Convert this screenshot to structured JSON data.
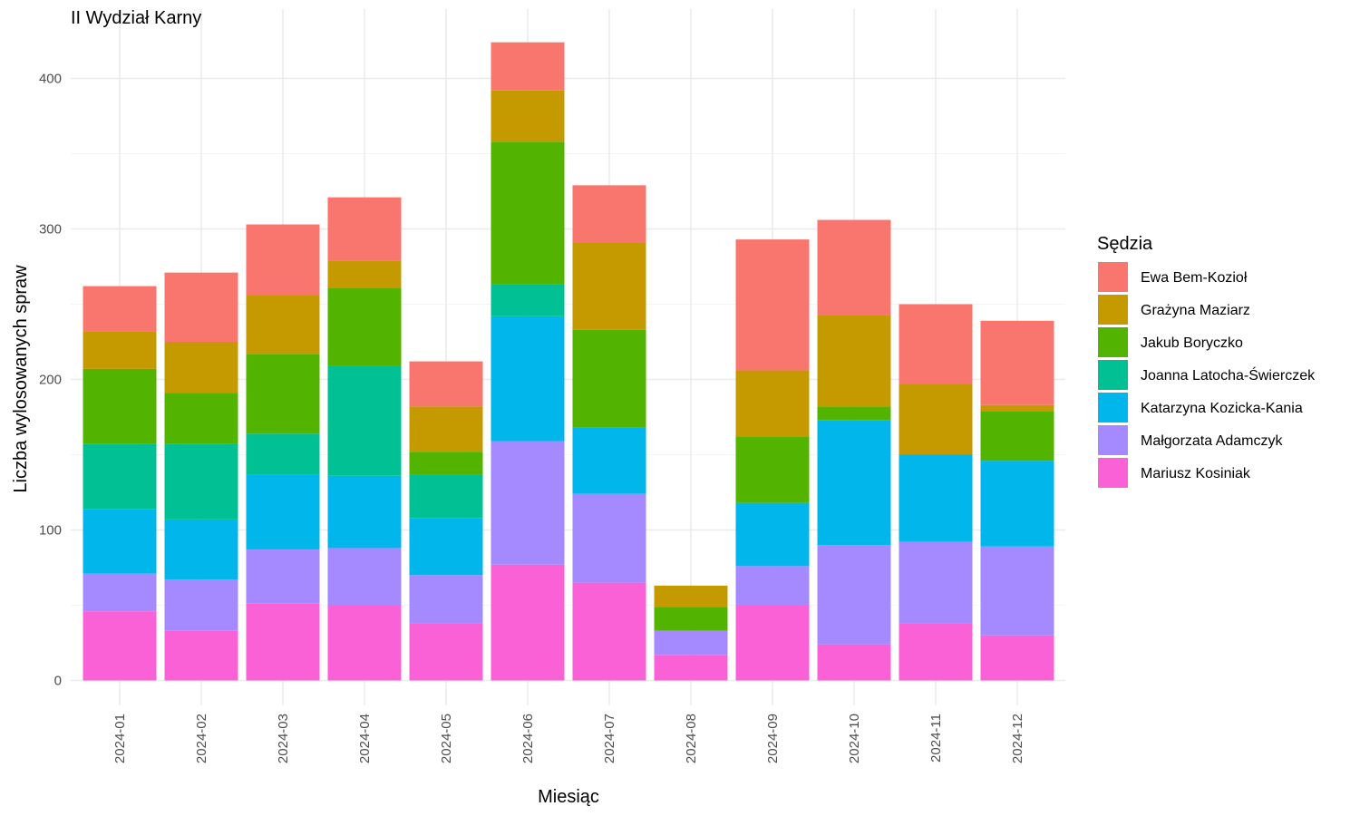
{
  "chart_data": {
    "type": "bar",
    "stacked": true,
    "title": "II Wydział Karny",
    "xlabel": "Miesiąc",
    "ylabel": "Liczba wylosowanych spraw",
    "ylim": [
      0,
      435
    ],
    "y_ticks": [
      0,
      100,
      200,
      300,
      400
    ],
    "grid": true,
    "legend": {
      "title": "Sędzia",
      "position": "right"
    },
    "categories": [
      "2024-01",
      "2024-02",
      "2024-03",
      "2024-04",
      "2024-05",
      "2024-06",
      "2024-07",
      "2024-08",
      "2024-09",
      "2024-10",
      "2024-11",
      "2024-12"
    ],
    "series": [
      {
        "name": "Ewa Bem-Kozioł",
        "color": "#F8766D",
        "values": [
          30,
          46,
          47,
          42,
          30,
          32,
          38,
          0,
          87,
          63,
          53,
          56
        ]
      },
      {
        "name": "Grażyna Maziarz",
        "color": "#C49A00",
        "values": [
          25,
          34,
          39,
          18,
          30,
          34,
          58,
          14,
          44,
          61,
          47,
          4
        ]
      },
      {
        "name": "Jakub Boryczko",
        "color": "#53B400",
        "values": [
          50,
          34,
          53,
          52,
          15,
          95,
          65,
          16,
          44,
          9,
          0,
          33
        ]
      },
      {
        "name": "Joanna Latocha-Świerczek",
        "color": "#00C094",
        "values": [
          43,
          50,
          27,
          73,
          29,
          21,
          0,
          0,
          0,
          0,
          0,
          0
        ]
      },
      {
        "name": "Katarzyna Kozicka-Kania",
        "color": "#00B6EB",
        "values": [
          43,
          40,
          50,
          48,
          38,
          83,
          44,
          0,
          42,
          83,
          58,
          57
        ]
      },
      {
        "name": "Małgorzata Adamczyk",
        "color": "#A58AFF",
        "values": [
          25,
          34,
          36,
          38,
          32,
          82,
          59,
          16,
          26,
          66,
          54,
          59
        ]
      },
      {
        "name": "Mariusz Kosiniak",
        "color": "#FB61D7",
        "values": [
          46,
          33,
          51,
          50,
          38,
          77,
          65,
          17,
          50,
          24,
          38,
          30
        ]
      }
    ]
  }
}
